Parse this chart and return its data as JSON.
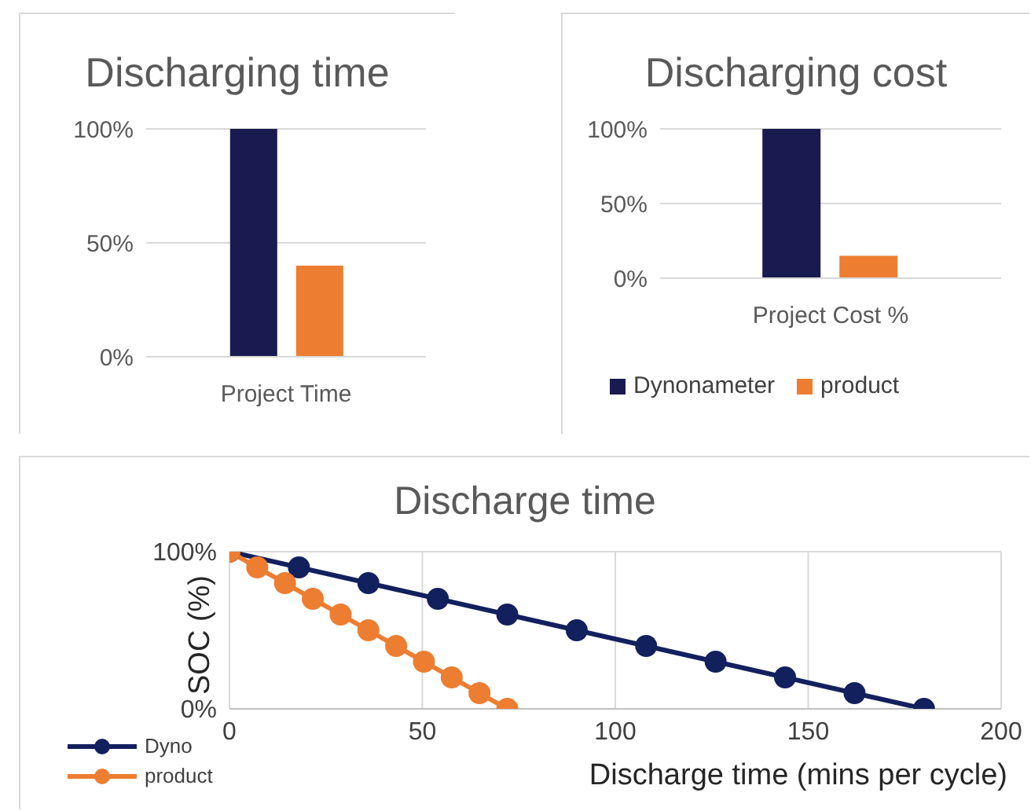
{
  "chart_data": [
    {
      "type": "bar",
      "title": "Discharging time",
      "categories": [
        "Project Time"
      ],
      "series": [
        {
          "color": "#191a50",
          "values": [
            100
          ]
        },
        {
          "color": "#ed7d31",
          "values": [
            40
          ]
        }
      ],
      "ylim": [
        0,
        100
      ],
      "yticks": [
        {
          "value": 0,
          "label": "0%"
        },
        {
          "value": 50,
          "label": "50%"
        },
        {
          "value": 100,
          "label": "100%"
        }
      ],
      "grid": "y",
      "legend": false
    },
    {
      "type": "bar",
      "title": "Discharging cost",
      "categories": [
        "Project Cost %"
      ],
      "series": [
        {
          "name": "Dynonameter",
          "color": "#191a50",
          "values": [
            100
          ]
        },
        {
          "name": "product",
          "color": "#ed7d31",
          "values": [
            15
          ]
        }
      ],
      "ylim": [
        0,
        100
      ],
      "yticks": [
        {
          "value": 0,
          "label": "0%"
        },
        {
          "value": 50,
          "label": "50%"
        },
        {
          "value": 100,
          "label": "100%"
        }
      ],
      "grid": "y",
      "legend": "bottom"
    },
    {
      "type": "line",
      "title": "Discharge time",
      "xlabel": "Discharge time (mins per cycle)",
      "ylabel": "SOC (%)",
      "series": [
        {
          "name": "Dyno",
          "color": "#12205e",
          "x": [
            0,
            18,
            36,
            54,
            72,
            90,
            108,
            126,
            144,
            162,
            180
          ],
          "values": [
            100,
            90,
            80,
            70,
            60,
            50,
            40,
            30,
            20,
            10,
            0
          ]
        },
        {
          "name": "product",
          "color": "#ed7d31",
          "x": [
            0,
            7.2,
            14.4,
            21.6,
            28.8,
            36,
            43.2,
            50.4,
            57.6,
            64.8,
            72
          ],
          "values": [
            100,
            90,
            80,
            70,
            60,
            50,
            40,
            30,
            20,
            10,
            0
          ]
        }
      ],
      "xlim": [
        0,
        200
      ],
      "xticks": [
        0,
        50,
        100,
        150,
        200
      ],
      "ylim": [
        0,
        100
      ],
      "yticks": [
        {
          "value": 0,
          "label": "0%"
        },
        {
          "value": 100,
          "label": "100%"
        }
      ],
      "grid": true,
      "marker": "circle",
      "line_style": "solid",
      "legend": "bottom left"
    }
  ]
}
